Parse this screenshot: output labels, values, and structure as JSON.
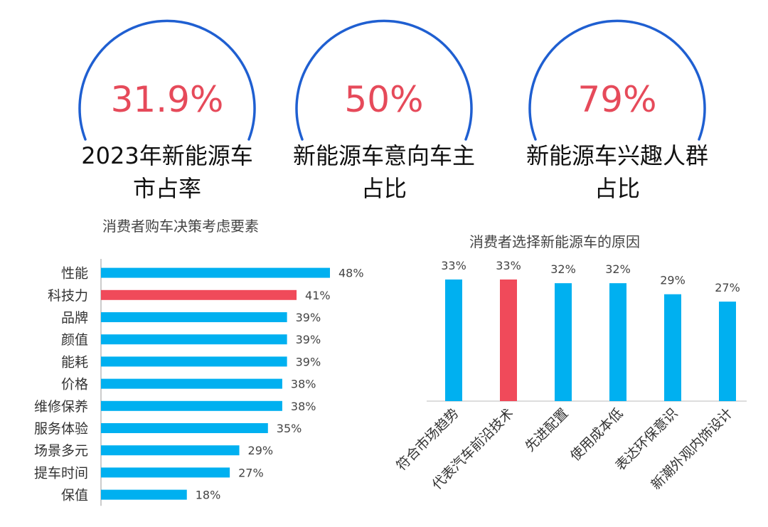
{
  "stats": [
    {
      "value": "31.9%",
      "label_line1": "2023年新能源车",
      "label_line2": "市占率"
    },
    {
      "value": "50%",
      "label_line1": "新能源车意向车主",
      "label_line2": "占比"
    },
    {
      "value": "79%",
      "label_line1": "新能源车兴趣人群",
      "label_line2": "占比"
    }
  ],
  "colors": {
    "circle": "#1f5fd1",
    "highlight_text": "#e64a5a",
    "bar": "#00b0f0",
    "bar_highlight": "#f04a5a"
  },
  "chart_data": [
    {
      "type": "bar",
      "orientation": "horizontal",
      "title": "消费者购车决策考虑要素",
      "categories": [
        "性能",
        "科技力",
        "品牌",
        "颜值",
        "能耗",
        "价格",
        "维修保养",
        "服务体验",
        "场景多元",
        "提车时间",
        "保值"
      ],
      "values": [
        48,
        41,
        39,
        39,
        39,
        38,
        38,
        35,
        29,
        27,
        18
      ],
      "data_labels": [
        "48%",
        "41%",
        "39%",
        "39%",
        "39%",
        "38%",
        "38%",
        "35%",
        "29%",
        "27%",
        "18%"
      ],
      "highlight_index": 1,
      "xlim": [
        0,
        48
      ],
      "grid": false
    },
    {
      "type": "bar",
      "orientation": "vertical",
      "title": "消费者选择新能源车的原因",
      "categories": [
        "符合市场趋势",
        "代表汽车前沿技术",
        "先进配置",
        "使用成本低",
        "表达环保意识",
        "新潮外观内饰设计"
      ],
      "values": [
        33,
        33,
        32,
        32,
        29,
        27
      ],
      "data_labels": [
        "33%",
        "33%",
        "32%",
        "32%",
        "29%",
        "27%"
      ],
      "highlight_index": 1,
      "ylim": [
        0,
        33
      ],
      "grid": false
    }
  ]
}
